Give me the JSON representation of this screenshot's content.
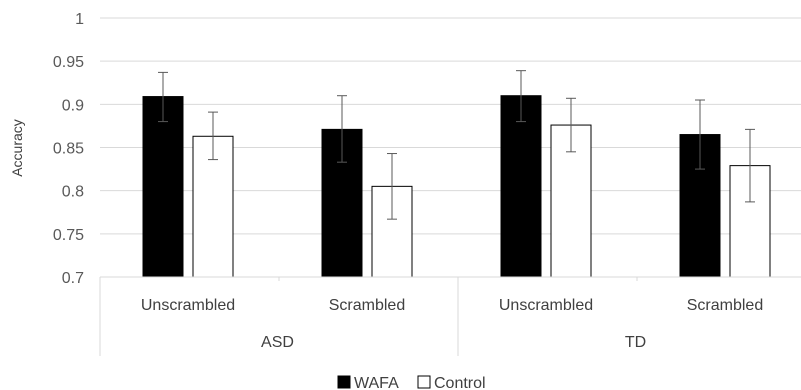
{
  "chart_data": {
    "type": "bar",
    "ylabel": "Accuracy",
    "ylim": [
      0.7,
      1
    ],
    "yticks": [
      "0.7",
      "0.75",
      "0.8",
      "0.85",
      "0.9",
      "0.95",
      "1"
    ],
    "grid": true,
    "legend_position": "bottom",
    "groups": [
      {
        "label": "ASD",
        "categories": [
          "Unscrambled",
          "Scrambled"
        ]
      },
      {
        "label": "TD",
        "categories": [
          "Unscrambled",
          "Scrambled"
        ]
      }
    ],
    "series": [
      {
        "name": "WAFA",
        "color": "#000000",
        "values": [
          0.909,
          0.871,
          0.91,
          0.865
        ],
        "error_low": [
          0.88,
          0.833,
          0.88,
          0.825
        ],
        "error_high": [
          0.937,
          0.91,
          0.939,
          0.905
        ]
      },
      {
        "name": "Control",
        "color": "#ffffff",
        "values": [
          0.863,
          0.805,
          0.876,
          0.829
        ],
        "error_low": [
          0.836,
          0.767,
          0.845,
          0.787
        ],
        "error_high": [
          0.891,
          0.843,
          0.907,
          0.871
        ]
      }
    ]
  }
}
